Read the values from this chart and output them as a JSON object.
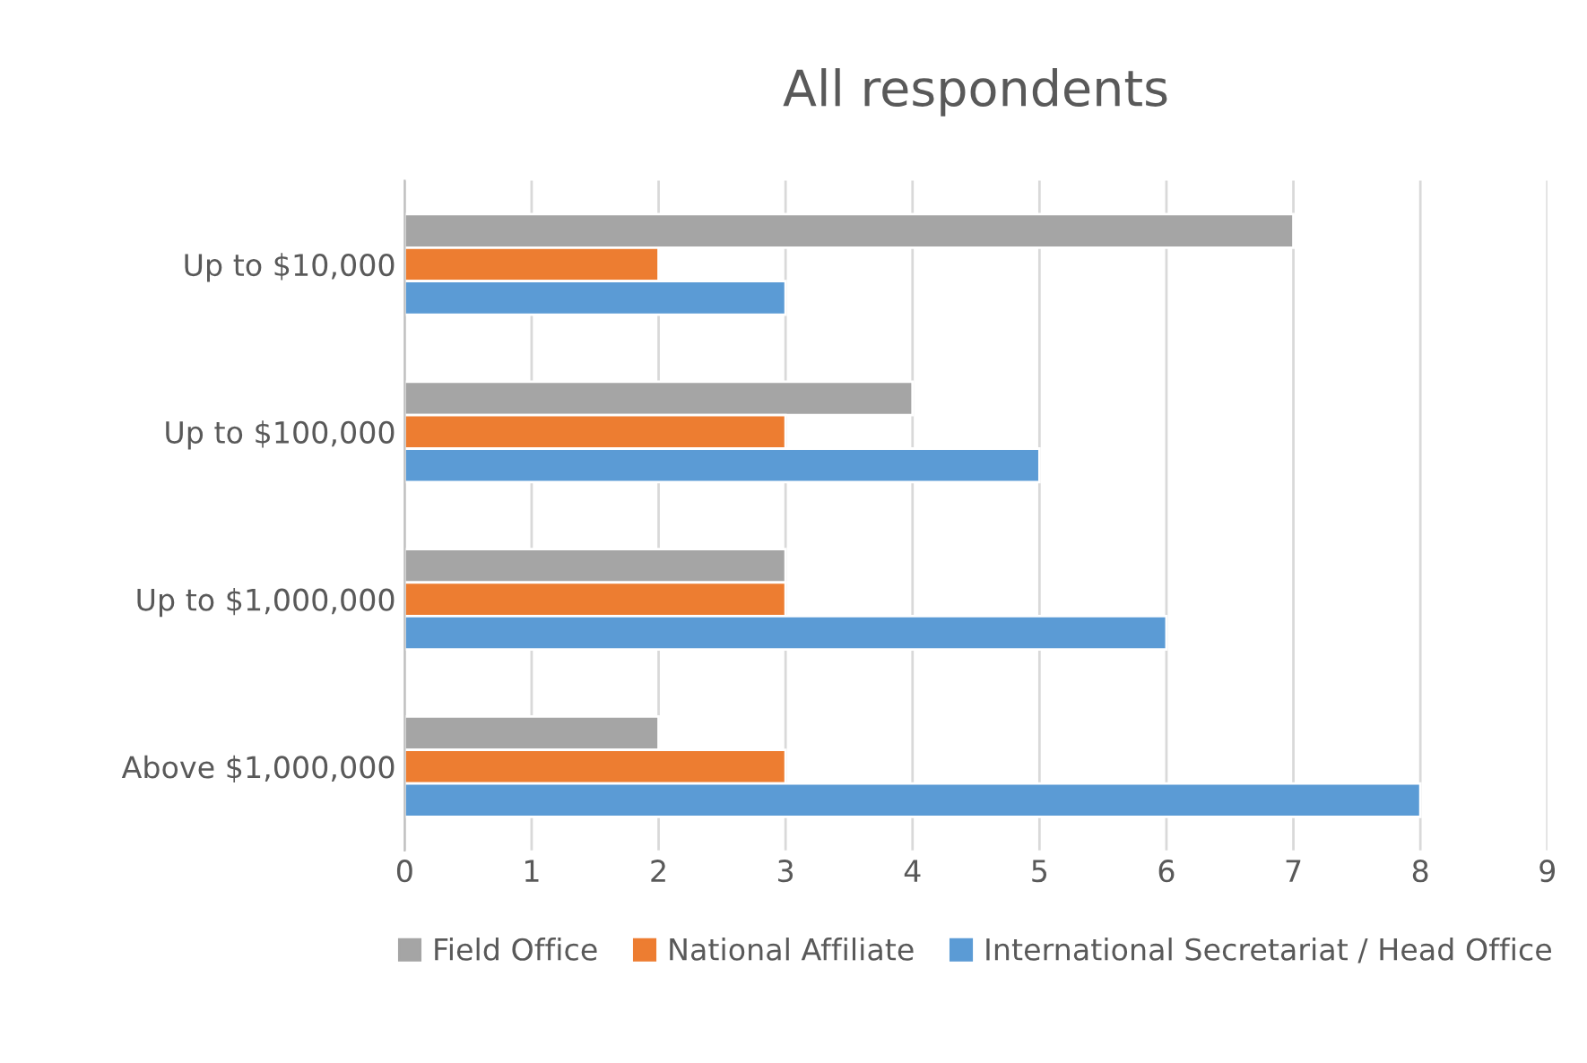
{
  "chart_data": {
    "type": "bar",
    "orientation": "horizontal",
    "title": "All respondents",
    "categories": [
      "Up to $10,000",
      "Up to $100,000",
      "Up to $1,000,000",
      "Above $1,000,000"
    ],
    "series": [
      {
        "name": "Field Office",
        "color": "#a5a5a5",
        "values": [
          7,
          4,
          3,
          2
        ]
      },
      {
        "name": "National Affiliate",
        "color": "#ed7d31",
        "values": [
          2,
          3,
          3,
          3
        ]
      },
      {
        "name": "International Secretariat / Head Office",
        "color": "#5b9bd5",
        "values": [
          3,
          5,
          6,
          8
        ]
      }
    ],
    "xlim": [
      0,
      9
    ],
    "xticks": [
      0,
      1,
      2,
      3,
      4,
      5,
      6,
      7,
      8,
      9
    ],
    "grid": "x",
    "legend": "bottom"
  }
}
